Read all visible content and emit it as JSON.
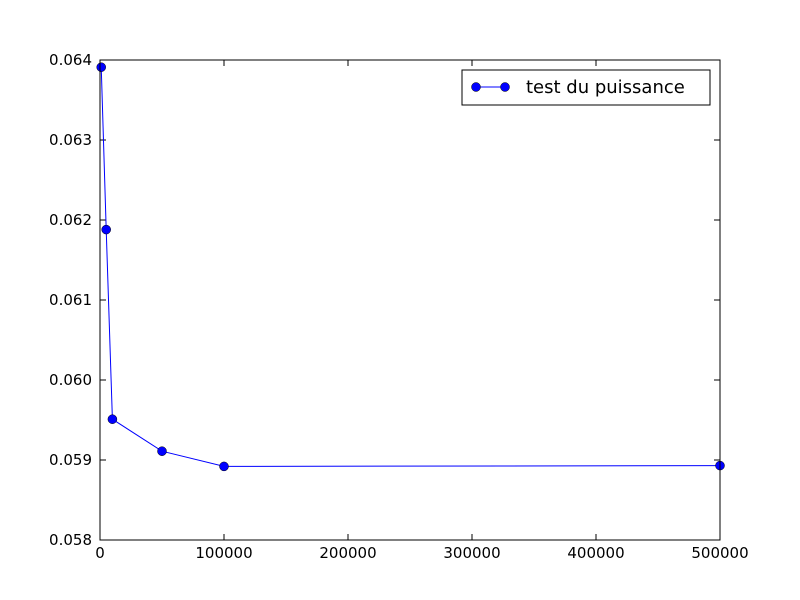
{
  "chart_data": {
    "type": "line",
    "title": "",
    "xlabel": "",
    "ylabel": "",
    "xlim": [
      0,
      500000
    ],
    "ylim": [
      0.058,
      0.064
    ],
    "x_ticks": [
      0,
      100000,
      200000,
      300000,
      400000,
      500000
    ],
    "x_tick_labels": [
      "0",
      "100000",
      "200000",
      "300000",
      "400000",
      "500000"
    ],
    "y_ticks": [
      0.058,
      0.059,
      0.06,
      0.061,
      0.062,
      0.063,
      0.064
    ],
    "y_tick_labels": [
      "0.058",
      "0.059",
      "0.060",
      "0.061",
      "0.062",
      "0.063",
      "0.064"
    ],
    "grid": false,
    "legend_position": "top-right",
    "series": [
      {
        "name": "test du puissance",
        "color": "#0000ff",
        "marker": "circle",
        "x": [
          1000,
          5000,
          10000,
          50000,
          100000,
          500000
        ],
        "y": [
          0.06391,
          0.06188,
          0.05951,
          0.05911,
          0.05892,
          0.05893
        ]
      }
    ]
  }
}
